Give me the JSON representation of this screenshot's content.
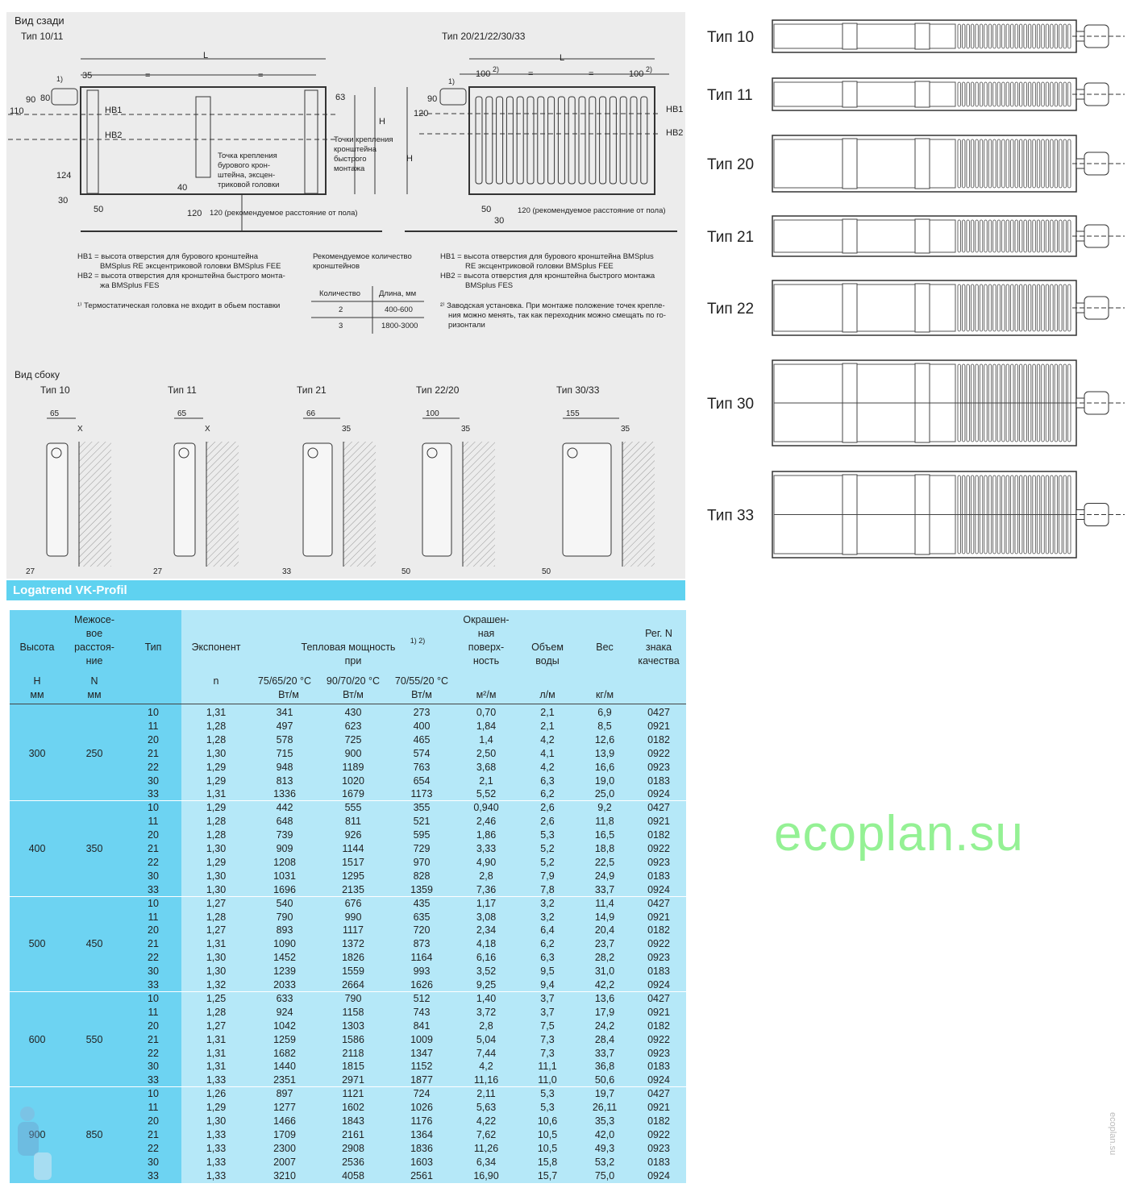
{
  "rear_view": {
    "title": "Вид сзади",
    "left_subtitle": "Тип 10/11",
    "right_subtitle": "Тип 20/21/22/30/33",
    "dims_left": {
      "L": "L",
      "d35": "35",
      "eq": "=",
      "fn1": "1)",
      "d90": "90",
      "d80": "80",
      "d110": "110",
      "hb1": "HB1",
      "hb2": "HB2",
      "d63": "63",
      "H": "H",
      "d124": "124",
      "d30": "30",
      "d50": "50",
      "d40": "40",
      "d120": "120",
      "floor_note": "120 (рекомендуемое расстояние от пола)",
      "mount_point": [
        "Точка крепления",
        "бурового крон-",
        "штейна, эксцен-",
        "триковой головки"
      ],
      "quick_points": [
        "Точки крепления",
        "кронштейна",
        "быстрого",
        "монтажа"
      ]
    },
    "dims_right": {
      "L": "L",
      "d100a": "100",
      "fn2": "2)",
      "eq": "=",
      "d100b": "100",
      "fn1": "1)",
      "d90": "90",
      "d120": "120",
      "H": "H",
      "hb1": "HB1",
      "hb2": "HB2",
      "d50": "50",
      "d30": "30",
      "floor_note": "120 (рекомендуемое расстояние от пола)"
    }
  },
  "notes": {
    "left": [
      "HB1 = высота отверстия для бурового кронштейна",
      "BMSplus RE эксцентриковой головки BMSplus FEE",
      "HB2 = высота отверстия для кронштейна быстрого монта-",
      "жа BMSplus FES"
    ],
    "left_footnote": "¹⁾ Термостатическая головка не входит в обьем поставки",
    "mid_title": [
      "Рекомендуемое количество",
      "кронштейнов"
    ],
    "mid_table": {
      "headers": [
        "Количество",
        "Длина, мм"
      ],
      "rows": [
        [
          "2",
          "400-600"
        ],
        [
          "3",
          "1800-3000"
        ]
      ]
    },
    "right": [
      "HB1 = высота отверстия для бурового кронштейна BMSplus",
      "RE эксцентриковой головки BMSplus FEE",
      "HB2 = высота отверстия для кронштейна быстрого монтажа",
      "BMSplus FES"
    ],
    "right_footnote": [
      "²⁾ Заводская установка. При монтаже положение точек крепле-",
      "ния можно менять, так как переходник можно смещать по го-",
      "ризонтали"
    ]
  },
  "side_view": {
    "title": "Вид сбоку",
    "types": [
      {
        "label": "Тип 10",
        "top": "65",
        "gap": "X",
        "bottom": "27"
      },
      {
        "label": "Тип 11",
        "top": "65",
        "gap": "X",
        "bottom": "27"
      },
      {
        "label": "Тип 21",
        "top": "66",
        "gap": "35",
        "bottom": "33"
      },
      {
        "label": "Тип 22/20",
        "top": "100",
        "gap": "35",
        "bottom": "50"
      },
      {
        "label": "Тип 30/33",
        "top": "155",
        "gap": "35",
        "bottom": "50"
      }
    ]
  },
  "top_views": [
    {
      "label": "Тип 10"
    },
    {
      "label": "Тип 11"
    },
    {
      "label": "Тип 20"
    },
    {
      "label": "Тип 21"
    },
    {
      "label": "Тип 22"
    },
    {
      "label": "Тип 30"
    },
    {
      "label": "Тип 33"
    }
  ],
  "band_title": "Logatrend VK-Profil",
  "table": {
    "headers": {
      "height": "Высота",
      "height_sym": "H",
      "height_unit": "мм",
      "dist": [
        "Межосе-",
        "вое",
        "расстоя-",
        "ние"
      ],
      "dist_sym": "N",
      "dist_unit": "мм",
      "type": "Тип",
      "exp": "Экспонент",
      "exp_sym": "n",
      "power": "Тепловая мощность",
      "power_sup": "1) 2)",
      "power_at": "при",
      "t1": "75/65/20 °C",
      "t2": "90/70/20 °C",
      "t3": "70/55/20 °C",
      "power_unit": "Вт/м",
      "surface": [
        "Окрашен-",
        "ная",
        "поверх-",
        "ность"
      ],
      "surface_unit": "м²/м",
      "volume": [
        "Объем",
        "воды"
      ],
      "volume_unit": "л/м",
      "weight": "Вес",
      "weight_unit": "кг/м",
      "reg": [
        "Рег. N",
        "знака",
        "качества"
      ]
    },
    "groups": [
      {
        "height": "300",
        "dist": "250",
        "rows": [
          [
            "10",
            "1,31",
            "341",
            "430",
            "273",
            "0,70",
            "2,1",
            "6,9",
            "0427"
          ],
          [
            "11",
            "1,28",
            "497",
            "623",
            "400",
            "1,84",
            "2,1",
            "8,5",
            "0921"
          ],
          [
            "20",
            "1,28",
            "578",
            "725",
            "465",
            "1,4",
            "4,2",
            "12,6",
            "0182"
          ],
          [
            "21",
            "1,30",
            "715",
            "900",
            "574",
            "2,50",
            "4,1",
            "13,9",
            "0922"
          ],
          [
            "22",
            "1,29",
            "948",
            "1189",
            "763",
            "3,68",
            "4,2",
            "16,6",
            "0923"
          ],
          [
            "30",
            "1,29",
            "813",
            "1020",
            "654",
            "2,1",
            "6,3",
            "19,0",
            "0183"
          ],
          [
            "33",
            "1,31",
            "1336",
            "1679",
            "1173",
            "5,52",
            "6,2",
            "25,0",
            "0924"
          ]
        ]
      },
      {
        "height": "400",
        "dist": "350",
        "rows": [
          [
            "10",
            "1,29",
            "442",
            "555",
            "355",
            "0,940",
            "2,6",
            "9,2",
            "0427"
          ],
          [
            "11",
            "1,28",
            "648",
            "811",
            "521",
            "2,46",
            "2,6",
            "11,8",
            "0921"
          ],
          [
            "20",
            "1,28",
            "739",
            "926",
            "595",
            "1,86",
            "5,3",
            "16,5",
            "0182"
          ],
          [
            "21",
            "1,30",
            "909",
            "1144",
            "729",
            "3,33",
            "5,2",
            "18,8",
            "0922"
          ],
          [
            "22",
            "1,29",
            "1208",
            "1517",
            "970",
            "4,90",
            "5,2",
            "22,5",
            "0923"
          ],
          [
            "30",
            "1,30",
            "1031",
            "1295",
            "828",
            "2,8",
            "7,9",
            "24,9",
            "0183"
          ],
          [
            "33",
            "1,30",
            "1696",
            "2135",
            "1359",
            "7,36",
            "7,8",
            "33,7",
            "0924"
          ]
        ]
      },
      {
        "height": "500",
        "dist": "450",
        "rows": [
          [
            "10",
            "1,27",
            "540",
            "676",
            "435",
            "1,17",
            "3,2",
            "11,4",
            "0427"
          ],
          [
            "11",
            "1,28",
            "790",
            "990",
            "635",
            "3,08",
            "3,2",
            "14,9",
            "0921"
          ],
          [
            "20",
            "1,27",
            "893",
            "1117",
            "720",
            "2,34",
            "6,4",
            "20,4",
            "0182"
          ],
          [
            "21",
            "1,31",
            "1090",
            "1372",
            "873",
            "4,18",
            "6,2",
            "23,7",
            "0922"
          ],
          [
            "22",
            "1,30",
            "1452",
            "1826",
            "1164",
            "6,16",
            "6,3",
            "28,2",
            "0923"
          ],
          [
            "30",
            "1,30",
            "1239",
            "1559",
            "993",
            "3,52",
            "9,5",
            "31,0",
            "0183"
          ],
          [
            "33",
            "1,32",
            "2033",
            "2664",
            "1626",
            "9,25",
            "9,4",
            "42,2",
            "0924"
          ]
        ]
      },
      {
        "height": "600",
        "dist": "550",
        "rows": [
          [
            "10",
            "1,25",
            "633",
            "790",
            "512",
            "1,40",
            "3,7",
            "13,6",
            "0427"
          ],
          [
            "11",
            "1,28",
            "924",
            "1158",
            "743",
            "3,72",
            "3,7",
            "17,9",
            "0921"
          ],
          [
            "20",
            "1,27",
            "1042",
            "1303",
            "841",
            "2,8",
            "7,5",
            "24,2",
            "0182"
          ],
          [
            "21",
            "1,31",
            "1259",
            "1586",
            "1009",
            "5,04",
            "7,3",
            "28,4",
            "0922"
          ],
          [
            "22",
            "1,31",
            "1682",
            "2118",
            "1347",
            "7,44",
            "7,3",
            "33,7",
            "0923"
          ],
          [
            "30",
            "1,31",
            "1440",
            "1815",
            "1152",
            "4,2",
            "11,1",
            "36,8",
            "0183"
          ],
          [
            "33",
            "1,33",
            "2351",
            "2971",
            "1877",
            "11,16",
            "11,0",
            "50,6",
            "0924"
          ]
        ]
      },
      {
        "height": "900",
        "dist": "850",
        "rows": [
          [
            "10",
            "1,26",
            "897",
            "1121",
            "724",
            "2,11",
            "5,3",
            "19,7",
            "0427"
          ],
          [
            "11",
            "1,29",
            "1277",
            "1602",
            "1026",
            "5,63",
            "5,3",
            "26,11",
            "0921"
          ],
          [
            "20",
            "1,30",
            "1466",
            "1843",
            "1176",
            "4,22",
            "10,6",
            "35,3",
            "0182"
          ],
          [
            "21",
            "1,33",
            "1709",
            "2161",
            "1364",
            "7,62",
            "10,5",
            "42,0",
            "0922"
          ],
          [
            "22",
            "1,33",
            "2300",
            "2908",
            "1836",
            "11,26",
            "10,5",
            "49,3",
            "0923"
          ],
          [
            "30",
            "1,33",
            "2007",
            "2536",
            "1603",
            "6,34",
            "15,8",
            "53,2",
            "0183"
          ],
          [
            "33",
            "1,33",
            "3210",
            "4058",
            "2561",
            "16,90",
            "15,7",
            "75,0",
            "0924"
          ]
        ]
      }
    ]
  },
  "watermark": "ecoplan.su",
  "side_watermark": "ecoplan.su",
  "colors": {
    "band": "#5fd2f0",
    "table_dark": "#6dd3f2",
    "table_light": "#b5e8f8",
    "panel": "#ececec"
  }
}
